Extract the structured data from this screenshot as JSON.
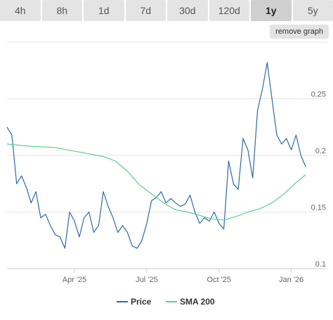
{
  "tabs": [
    {
      "label": "4h",
      "active": false
    },
    {
      "label": "8h",
      "active": false
    },
    {
      "label": "1d",
      "active": false
    },
    {
      "label": "7d",
      "active": false
    },
    {
      "label": "30d",
      "active": false
    },
    {
      "label": "120d",
      "active": false
    },
    {
      "label": "1y",
      "active": true
    },
    {
      "label": "5y",
      "active": false
    }
  ],
  "remove_graph_label": "remove graph",
  "chart_data": {
    "type": "line",
    "y_ticks": [
      0.1,
      0.15,
      0.2,
      0.25
    ],
    "y_tick_labels": [
      "0.1",
      "0.15",
      "0.2",
      "0.25"
    ],
    "ylim": [
      0.1,
      0.3
    ],
    "x_ticks": [
      "Apr '25",
      "Jul '25",
      "Oct '25",
      "Jan '26"
    ],
    "x_tick_positions": [
      2.8,
      5.8,
      8.8,
      11.8
    ],
    "xlim": [
      0,
      13.3
    ],
    "grid": "horizontal",
    "legend_position": "bottom",
    "series": [
      {
        "name": "Price",
        "color": "#2e6aa6",
        "x": [
          0.0,
          0.2,
          0.4,
          0.6,
          0.8,
          1.0,
          1.2,
          1.4,
          1.6,
          1.8,
          2.0,
          2.2,
          2.4,
          2.6,
          2.8,
          3.0,
          3.2,
          3.4,
          3.6,
          3.8,
          4.0,
          4.2,
          4.4,
          4.6,
          4.8,
          5.0,
          5.2,
          5.4,
          5.6,
          5.8,
          6.0,
          6.2,
          6.4,
          6.6,
          6.8,
          7.0,
          7.2,
          7.4,
          7.6,
          7.8,
          8.0,
          8.2,
          8.4,
          8.6,
          8.8,
          9.0,
          9.2,
          9.4,
          9.6,
          9.8,
          10.0,
          10.2,
          10.4,
          10.6,
          10.8,
          11.0,
          11.2,
          11.4,
          11.6,
          11.8,
          12.0,
          12.2,
          12.4
        ],
        "y": [
          0.225,
          0.218,
          0.175,
          0.182,
          0.172,
          0.158,
          0.168,
          0.145,
          0.148,
          0.138,
          0.13,
          0.128,
          0.118,
          0.15,
          0.142,
          0.128,
          0.145,
          0.15,
          0.132,
          0.138,
          0.168,
          0.155,
          0.145,
          0.132,
          0.138,
          0.132,
          0.12,
          0.118,
          0.125,
          0.14,
          0.16,
          0.163,
          0.168,
          0.158,
          0.162,
          0.158,
          0.155,
          0.157,
          0.165,
          0.15,
          0.14,
          0.145,
          0.142,
          0.15,
          0.14,
          0.135,
          0.195,
          0.175,
          0.17,
          0.215,
          0.205,
          0.18,
          0.24,
          0.258,
          0.282,
          0.25,
          0.218,
          0.21,
          0.215,
          0.205,
          0.218,
          0.2,
          0.19
        ]
      },
      {
        "name": "SMA 200",
        "color": "#5ccf8a",
        "x": [
          0.0,
          1.0,
          2.0,
          3.0,
          4.0,
          4.5,
          5.0,
          5.5,
          6.0,
          6.5,
          7.0,
          7.5,
          8.0,
          8.5,
          9.0,
          9.5,
          10.0,
          10.5,
          11.0,
          11.5,
          12.0,
          12.4
        ],
        "y": [
          0.21,
          0.208,
          0.207,
          0.203,
          0.199,
          0.195,
          0.186,
          0.174,
          0.166,
          0.158,
          0.152,
          0.15,
          0.147,
          0.144,
          0.143,
          0.146,
          0.15,
          0.153,
          0.158,
          0.166,
          0.176,
          0.183
        ]
      }
    ]
  }
}
